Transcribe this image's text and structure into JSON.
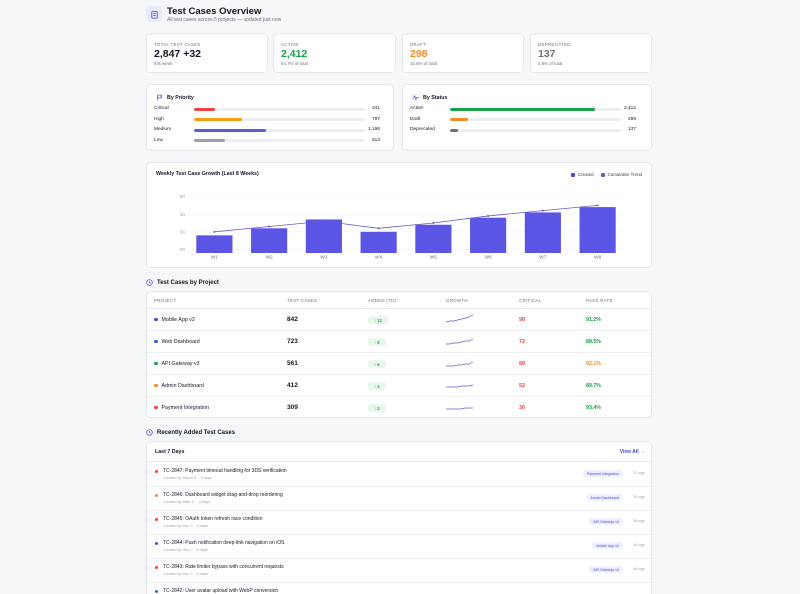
{
  "header": {
    "title": "Test Cases Overview",
    "subtitle": "All test cases across 5 projects — updated just now"
  },
  "stats": [
    {
      "label": "TOTAL TEST CASES",
      "value": "2,847",
      "delta": "+32",
      "sub": "this week",
      "color": "#111827"
    },
    {
      "label": "ACTIVE",
      "value": "2,412",
      "sub": "84.7% of total",
      "color": "#16a34a"
    },
    {
      "label": "DRAFT",
      "value": "298",
      "sub": "10.5% of total",
      "color": "#f28c28"
    },
    {
      "label": "DEPRECATED",
      "value": "137",
      "sub": "4.8% of total",
      "color": "#6b7280"
    }
  ],
  "priority": {
    "title": "By Priority",
    "rows": [
      {
        "label": "Critical",
        "value": "341",
        "fraction": 0.12,
        "color": "#ef4444"
      },
      {
        "label": "High",
        "value": "797",
        "fraction": 0.28,
        "color": "#f59e0b"
      },
      {
        "label": "Medium",
        "value": "1,196",
        "fraction": 0.42,
        "color": "#5b5bd6"
      },
      {
        "label": "Low",
        "value": "513",
        "fraction": 0.18,
        "color": "#9ca3af"
      }
    ]
  },
  "status": {
    "title": "By Status",
    "rows": [
      {
        "label": "Active",
        "value": "2,412",
        "fraction": 0.847,
        "color": "#16a34a"
      },
      {
        "label": "Draft",
        "value": "298",
        "fraction": 0.105,
        "color": "#f28c28"
      },
      {
        "label": "Deprecated",
        "value": "137",
        "fraction": 0.048,
        "color": "#6b7280"
      }
    ]
  },
  "chart_data": {
    "type": "bar",
    "title": "Weekly Test Case Growth (Last 8 Weeks)",
    "categories": [
      "W1",
      "W2",
      "W3",
      "W4",
      "W5",
      "W6",
      "W7",
      "W8"
    ],
    "series": [
      {
        "name": "Created",
        "type": "bar",
        "values": [
          28,
          32,
          37,
          30,
          34,
          38,
          41,
          44
        ]
      },
      {
        "name": "Cumulative Trend",
        "type": "line",
        "values": [
          30,
          33,
          36,
          32,
          35,
          39,
          42,
          45
        ]
      }
    ],
    "yticks": [
      20,
      30,
      40,
      50
    ],
    "ylim": [
      18,
      52
    ],
    "legend": "top-right",
    "colors": {
      "bar": "#5b55e6",
      "line": "#6d5bd0"
    }
  },
  "projects": {
    "title": "Test Cases by Project",
    "columns": [
      "PROJECT",
      "TEST CASES",
      "ADDED (7D)",
      "GROWTH",
      "CRITICAL",
      "PASS RATE"
    ],
    "rows": [
      {
        "name": "Mobile App v2",
        "dot": "#4f46e5",
        "cases": "842",
        "added": "↑ 12",
        "critical": "98",
        "pass": "91.2%",
        "pass_color": "#16a34a",
        "growth": [
          3,
          4,
          4,
          5,
          6,
          7,
          8,
          10
        ]
      },
      {
        "name": "Web Dashboard",
        "dot": "#2563eb",
        "cases": "723",
        "added": "↑ 8",
        "critical": "72",
        "pass": "88.5%",
        "pass_color": "#16a34a",
        "growth": [
          3,
          3,
          4,
          4,
          5,
          6,
          6,
          8
        ]
      },
      {
        "name": "API Gateway v3",
        "dot": "#16a34a",
        "cases": "561",
        "added": "↑ 6",
        "critical": "89",
        "pass": "82.1%",
        "pass_color": "#f28c28",
        "growth": [
          3,
          3,
          3,
          4,
          4,
          5,
          5,
          7
        ]
      },
      {
        "name": "Admin Dashboard",
        "dot": "#f28c28",
        "cases": "412",
        "added": "↑ 4",
        "critical": "52",
        "pass": "89.7%",
        "pass_color": "#16a34a",
        "growth": [
          4,
          4,
          4,
          4,
          5,
          5,
          5,
          6
        ]
      },
      {
        "name": "Payment Integration",
        "dot": "#ef4444",
        "cases": "309",
        "added": "↑ 2",
        "critical": "30",
        "pass": "93.4%",
        "pass_color": "#16a34a",
        "growth": [
          4,
          4,
          4,
          4,
          4,
          5,
          5,
          5
        ]
      }
    ]
  },
  "recent": {
    "title": "Recently Added Test Cases",
    "period": "Last 7 Days",
    "view_all": "View All →",
    "items": [
      {
        "title": "TC-2847: Payment timeout handling for 3DS verification",
        "meta": "Created by Sarah K. · 3 days",
        "tag": "Payment Integration",
        "ago": "2h ago",
        "dot": "#ef4444"
      },
      {
        "title": "TC-2846: Dashboard widget drag-and-drop reordering",
        "meta": "Created by Mike C. · 4 days",
        "tag": "Admin Dashboard",
        "ago": "3h ago",
        "dot": "#f28c28"
      },
      {
        "title": "TC-2845: OAuth token refresh race condition",
        "meta": "Created by Alex T. · 5 days",
        "tag": "API Gateway v3",
        "ago": "5h ago",
        "dot": "#ef4444"
      },
      {
        "title": "TC-2844: Push notification deep-link navigation on iOS",
        "meta": "Created by Jira L. · 6 days",
        "tag": "Mobile App v2",
        "ago": "6h ago",
        "dot": "#4f46e5"
      },
      {
        "title": "TC-2843: Rate limiter bypass with concurrent requests",
        "meta": "Created by Alex T. · 6 days",
        "tag": "API Gateway v3",
        "ago": "8h ago",
        "dot": "#ef4444"
      },
      {
        "title": "TC-2842: User avatar upload with WebP conversion",
        "meta": "",
        "tag": "",
        "ago": "",
        "dot": "#2563eb"
      }
    ]
  }
}
